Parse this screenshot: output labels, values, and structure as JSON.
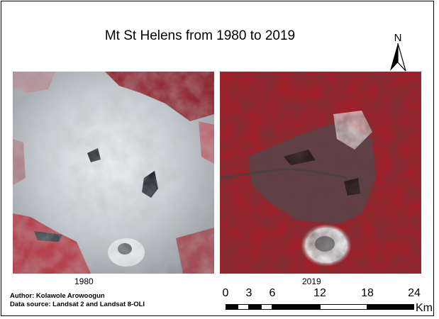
{
  "map": {
    "title": "Mt St Helens from 1980 to 2019",
    "north_label": "N",
    "panels": [
      {
        "caption": "1980",
        "source": "Landsat 2"
      },
      {
        "caption": "2019",
        "source": "Landsat 8-OLI"
      }
    ],
    "credits": {
      "author": "Author: Kolawole Arowoogun",
      "source": "Data source: Landsat 2  and Landsat 8-OLI"
    },
    "scale_bar": {
      "ticks": [
        "0",
        "3",
        "6",
        "12",
        "18",
        "24"
      ],
      "tick_values": [
        0,
        3,
        6,
        12,
        18,
        24
      ],
      "unit": "Km"
    },
    "colors": {
      "vegetation_red": "#a0202a",
      "ash_grey": "#c9cfd4",
      "crater_white": "#f2f2f2"
    }
  }
}
